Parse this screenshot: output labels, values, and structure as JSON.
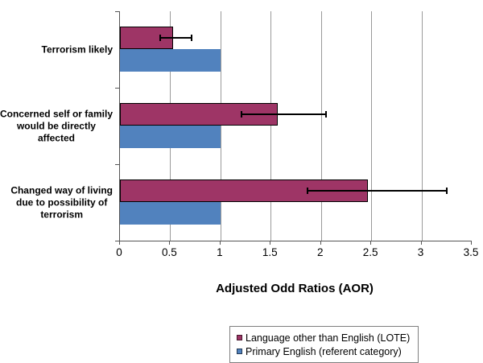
{
  "chart_data": {
    "type": "bar",
    "orientation": "horizontal",
    "xlabel": "Adjusted Odd Ratios (AOR)",
    "xlim": [
      0,
      3.5
    ],
    "x_ticks": [
      0,
      0.5,
      1,
      1.5,
      2,
      2.5,
      3,
      3.5
    ],
    "x_tick_labels": [
      "0",
      "0.5",
      "1",
      "1.5",
      "2",
      "2.5",
      "3",
      "3.5"
    ],
    "grid": true,
    "legend_position": "bottom",
    "categories": [
      {
        "label_lines": [
          "Terrorism likely"
        ],
        "lote_value": 0.53,
        "lote_ci": [
          0.4,
          0.71
        ],
        "english_value": 1.0
      },
      {
        "label_lines": [
          "Concerned self or family",
          "would be directly",
          "affected"
        ],
        "lote_value": 1.57,
        "lote_ci": [
          1.21,
          2.05
        ],
        "english_value": 1.0
      },
      {
        "label_lines": [
          "Changed way of living",
          "due to possibility of",
          "terrorism"
        ],
        "lote_value": 2.47,
        "lote_ci": [
          1.87,
          3.25
        ],
        "english_value": 1.0
      }
    ],
    "series": [
      {
        "name": "Language other than English (LOTE)",
        "key": "lote",
        "color": "#9E3566",
        "border_color": "#000000",
        "values": [
          0.53,
          1.57,
          2.47
        ]
      },
      {
        "name": "Primary English (referent category)",
        "key": "english",
        "color": "#5182BE",
        "border_color": "#5182BE",
        "values": [
          1.0,
          1.0,
          1.0
        ]
      }
    ]
  },
  "colors": {
    "gridline": "#9a9a9a",
    "axis": "#555555",
    "error_bar": "#000000",
    "legend_border": "#7f7f7f",
    "background": "#ffffff",
    "text": "#000000"
  }
}
